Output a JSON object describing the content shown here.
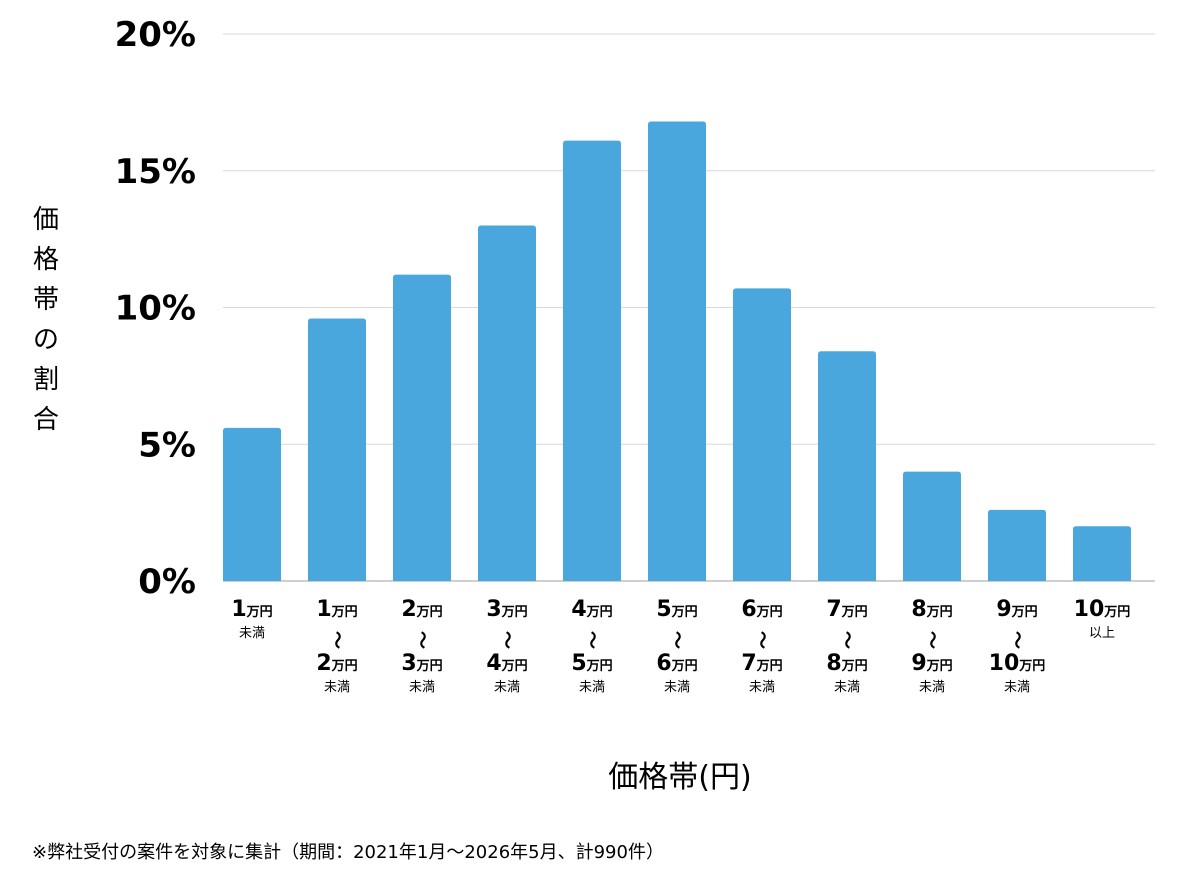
{
  "chart_data": {
    "type": "bar",
    "categories": [
      {
        "lines": [
          {
            "num": "1",
            "unit": "万円"
          },
          {
            "sub": "未満"
          }
        ]
      },
      {
        "lines": [
          {
            "num": "1",
            "unit": "万円"
          },
          {
            "tilde": "〜"
          },
          {
            "num": "2",
            "unit": "万円"
          },
          {
            "sub": "未満"
          }
        ]
      },
      {
        "lines": [
          {
            "num": "2",
            "unit": "万円"
          },
          {
            "tilde": "〜"
          },
          {
            "num": "3",
            "unit": "万円"
          },
          {
            "sub": "未満"
          }
        ]
      },
      {
        "lines": [
          {
            "num": "3",
            "unit": "万円"
          },
          {
            "tilde": "〜"
          },
          {
            "num": "4",
            "unit": "万円"
          },
          {
            "sub": "未満"
          }
        ]
      },
      {
        "lines": [
          {
            "num": "4",
            "unit": "万円"
          },
          {
            "tilde": "〜"
          },
          {
            "num": "5",
            "unit": "万円"
          },
          {
            "sub": "未満"
          }
        ]
      },
      {
        "lines": [
          {
            "num": "5",
            "unit": "万円"
          },
          {
            "tilde": "〜"
          },
          {
            "num": "6",
            "unit": "万円"
          },
          {
            "sub": "未満"
          }
        ]
      },
      {
        "lines": [
          {
            "num": "6",
            "unit": "万円"
          },
          {
            "tilde": "〜"
          },
          {
            "num": "7",
            "unit": "万円"
          },
          {
            "sub": "未満"
          }
        ]
      },
      {
        "lines": [
          {
            "num": "7",
            "unit": "万円"
          },
          {
            "tilde": "〜"
          },
          {
            "num": "8",
            "unit": "万円"
          },
          {
            "sub": "未満"
          }
        ]
      },
      {
        "lines": [
          {
            "num": "8",
            "unit": "万円"
          },
          {
            "tilde": "〜"
          },
          {
            "num": "9",
            "unit": "万円"
          },
          {
            "sub": "未満"
          }
        ]
      },
      {
        "lines": [
          {
            "num": "9",
            "unit": "万円"
          },
          {
            "tilde": "〜"
          },
          {
            "num": "10",
            "unit": "万円"
          },
          {
            "sub": "未満"
          }
        ]
      },
      {
        "lines": [
          {
            "num": "10",
            "unit": "万円"
          },
          {
            "sub": "以上"
          }
        ]
      }
    ],
    "values": [
      5.6,
      9.6,
      11.2,
      13.0,
      16.1,
      16.8,
      10.7,
      8.4,
      4.0,
      2.6,
      2.0
    ],
    "ylim": [
      0,
      20
    ],
    "yticks": [
      0,
      5,
      10,
      15,
      20
    ],
    "ytick_labels": [
      "0%",
      "5%",
      "10%",
      "15%",
      "20%"
    ],
    "ylabel": "価格帯の割合",
    "xlabel": "価格帯(円)",
    "grid": true,
    "bar_color": "#4aa7de",
    "grid_color": "#d9d9d9",
    "axis_color": "#bfbfbf"
  },
  "footnote": "※弊社受付の案件を対象に集計（期間：2021年1月〜2026年5月、計990件）"
}
